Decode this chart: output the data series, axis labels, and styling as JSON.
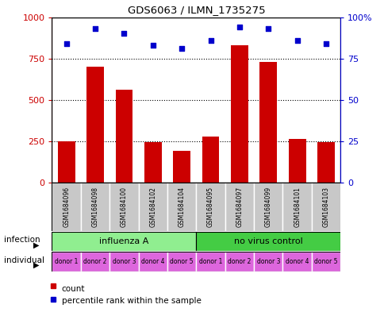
{
  "title": "GDS6063 / ILMN_1735275",
  "samples": [
    "GSM1684096",
    "GSM1684098",
    "GSM1684100",
    "GSM1684102",
    "GSM1684104",
    "GSM1684095",
    "GSM1684097",
    "GSM1684099",
    "GSM1684101",
    "GSM1684103"
  ],
  "counts": [
    250,
    700,
    560,
    245,
    190,
    280,
    830,
    730,
    265,
    245
  ],
  "percentiles": [
    84,
    93,
    90,
    83,
    81,
    86,
    94,
    93,
    86,
    84
  ],
  "infection_groups": [
    {
      "label": "influenza A",
      "start": 0,
      "end": 5,
      "color": "#90ee90"
    },
    {
      "label": "no virus control",
      "start": 5,
      "end": 10,
      "color": "#44cc44"
    }
  ],
  "individual_labels": [
    "donor 1",
    "donor 2",
    "donor 3",
    "donor 4",
    "donor 5",
    "donor 1",
    "donor 2",
    "donor 3",
    "donor 4",
    "donor 5"
  ],
  "individual_color": "#dd66dd",
  "bar_color": "#cc0000",
  "dot_color": "#0000cc",
  "left_axis_color": "#cc0000",
  "right_axis_color": "#0000cc",
  "ylim_left": [
    0,
    1000
  ],
  "ylim_right": [
    0,
    100
  ],
  "yticks_left": [
    0,
    250,
    500,
    750,
    1000
  ],
  "yticks_right": [
    0,
    25,
    50,
    75,
    100
  ],
  "sample_box_color": "#c8c8c8",
  "legend_count_label": "count",
  "legend_pct_label": "percentile rank within the sample",
  "infection_row_label": "infection",
  "individual_row_label": "individual",
  "gridlines_at": [
    250,
    500,
    750
  ]
}
